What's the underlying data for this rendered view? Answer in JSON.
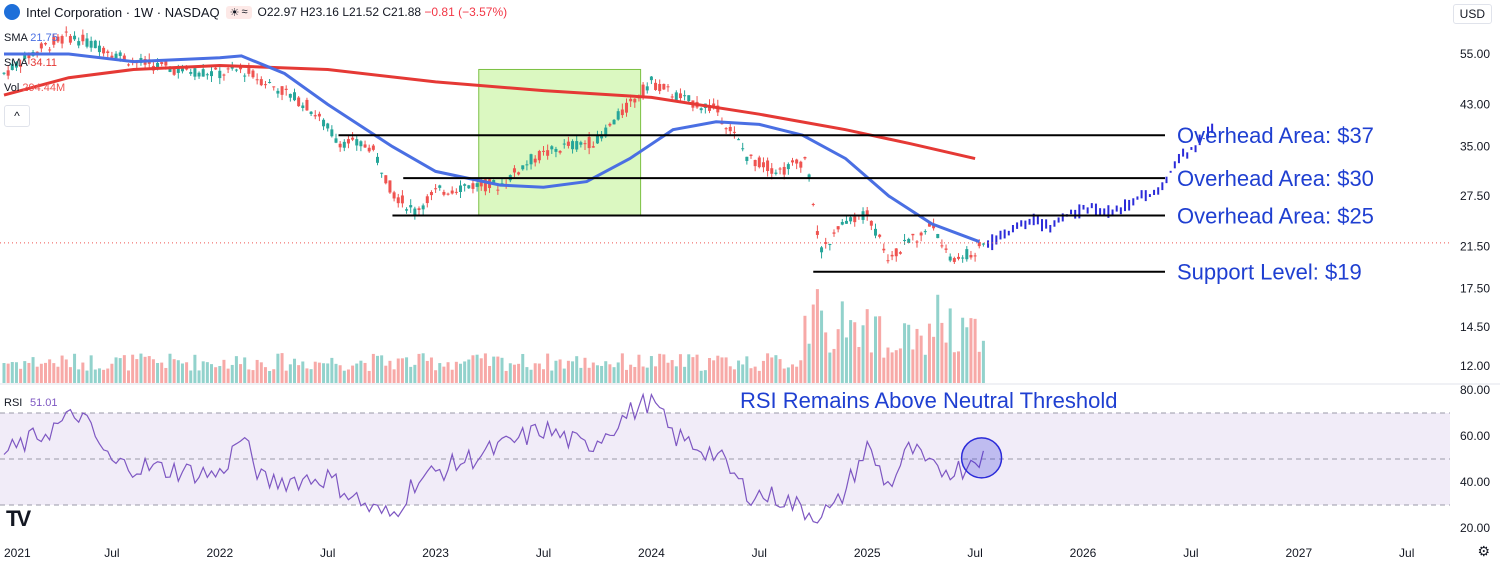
{
  "header": {
    "title": "Intel Corporation · 1W · NASDAQ",
    "ohlc": {
      "open": "O22.97",
      "high": "H23.16",
      "low": "L21.52",
      "close": "C21.88",
      "change": "−0.81 (−3.57%)"
    },
    "sma1": {
      "label": "SMA",
      "value": "21.75"
    },
    "sma2": {
      "label": "SMA",
      "value": "34.11"
    },
    "vol": {
      "label": "Vol",
      "value": "294.44M"
    },
    "currency": "USD",
    "collapse_label": "^"
  },
  "colors": {
    "up": "#26a69a",
    "down": "#ef5350",
    "sma_short": "#4a6fe3",
    "sma_long": "#e53935",
    "rsi_line": "#7e57c2",
    "rsi_band": "#ede7f6",
    "highlight_box": "#ccf5a6",
    "projection": "#2b2bd9",
    "annotation_text": "#1f3fd1"
  },
  "chart_data": {
    "type": "candlestick",
    "price_axis": {
      "ticks": [
        55.0,
        43.0,
        35.0,
        27.5,
        21.5,
        17.5,
        14.5,
        12.0
      ],
      "scale": "log",
      "labels": [
        "55.00",
        "43.00",
        "35.00",
        "27.50",
        "21.50",
        "17.50",
        "14.50",
        "12.00"
      ]
    },
    "time_axis": {
      "labels": [
        "2021",
        "Jul",
        "2022",
        "Jul",
        "2023",
        "Jul",
        "2024",
        "Jul",
        "2025",
        "Jul",
        "2026",
        "Jul",
        "2027",
        "Jul"
      ]
    },
    "levels": [
      {
        "label": "Overhead Area: $37",
        "price": 37
      },
      {
        "label": "Overhead Area: $30",
        "price": 30
      },
      {
        "label": "Overhead Area: $25",
        "price": 25
      },
      {
        "label": "Support Level: $19",
        "price": 19
      }
    ],
    "current_price": 21.88,
    "rsi": {
      "label": "RSI",
      "value": "51.01",
      "ticks": [
        80.0,
        60.0,
        40.0,
        20.0
      ],
      "tick_labels": [
        "80.00",
        "60.00",
        "40.00",
        "20.00"
      ],
      "upper": 70,
      "middle": 50,
      "lower": 30,
      "annotation": "RSI Remains Above Neutral Threshold"
    },
    "highlight_box": {
      "x_start": 2023.2,
      "x_end": 2023.95,
      "price_low": 25,
      "price_high": 51
    }
  },
  "tv_logo": "TV",
  "settings_icon": "⚙"
}
